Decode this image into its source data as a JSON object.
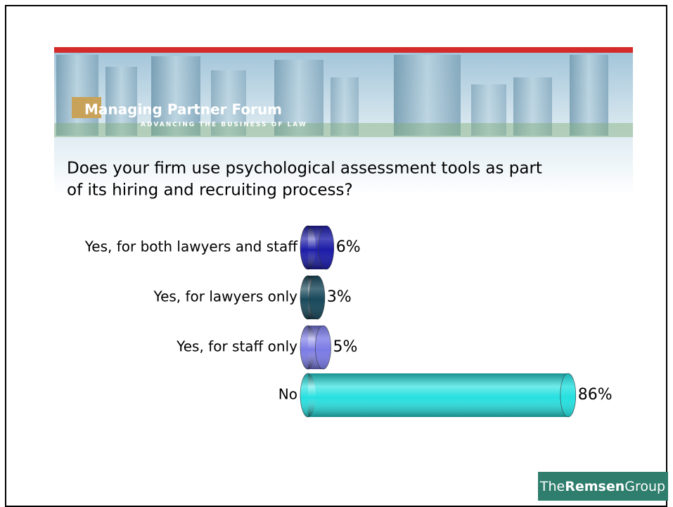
{
  "logo": {
    "name": "Managing Partner Forum",
    "tagline": "ADVANCING THE BUSINESS OF LAW"
  },
  "footer": [
    "The",
    "Remsen",
    "Group"
  ],
  "chart_data": {
    "type": "bar",
    "orientation": "horizontal",
    "title": [
      "Does your firm use psychological assessment tools as part",
      "of its hiring and recruiting process?"
    ],
    "categories": [
      "Yes, for both lawyers and staff",
      "Yes, for lawyers only",
      "Yes, for staff only",
      "No"
    ],
    "values": [
      6,
      3,
      5,
      86
    ],
    "value_labels": [
      "6%",
      "3%",
      "5%",
      "86%"
    ],
    "colors": [
      "#1c1ca8",
      "#17485a",
      "#7b7be6",
      "#26e0e0"
    ]
  }
}
